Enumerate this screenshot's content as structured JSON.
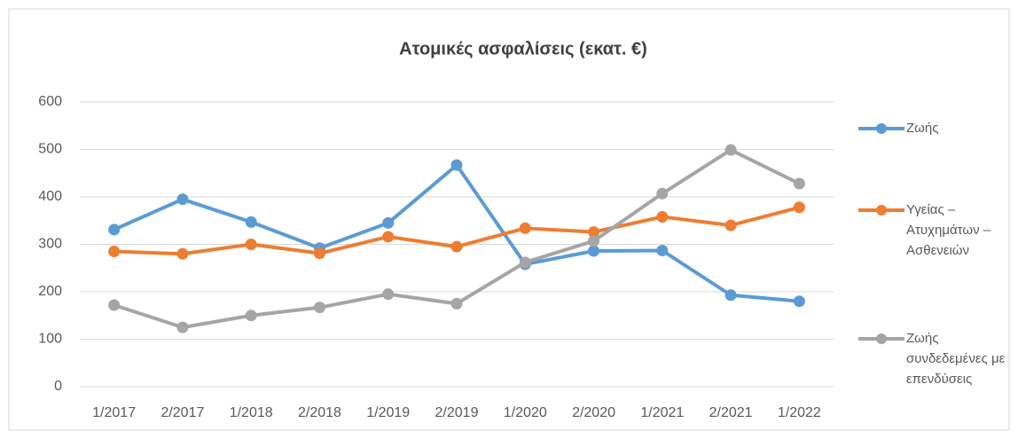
{
  "chart_data": {
    "type": "line",
    "title": "Ατομικές ασφαλίσεις  (εκατ. €)",
    "categories": [
      "1/2017",
      "2/2017",
      "1/2018",
      "2/2018",
      "1/2019",
      "2/2019",
      "1/2020",
      "2/2020",
      "1/2021",
      "2/2021",
      "1/2022"
    ],
    "series": [
      {
        "name": "Ζωής",
        "color": "#5b9bd5",
        "values": [
          331,
          395,
          347,
          292,
          345,
          467,
          258,
          286,
          287,
          193,
          180
        ]
      },
      {
        "name": "Υγείας – Ατυχημάτων – Ασθενειών",
        "color": "#ed7d31",
        "values": [
          285,
          280,
          300,
          281,
          316,
          295,
          334,
          326,
          358,
          340,
          378
        ]
      },
      {
        "name": "Ζωής συνδεδεμένες με επενδύσεις",
        "color": "#a5a5a5",
        "values": [
          172,
          125,
          150,
          167,
          195,
          175,
          262,
          307,
          407,
          499,
          428
        ]
      }
    ],
    "ylim": [
      0,
      600
    ],
    "yticks": [
      0,
      100,
      200,
      300,
      400,
      500,
      600
    ],
    "grid": true,
    "legend": "right"
  }
}
